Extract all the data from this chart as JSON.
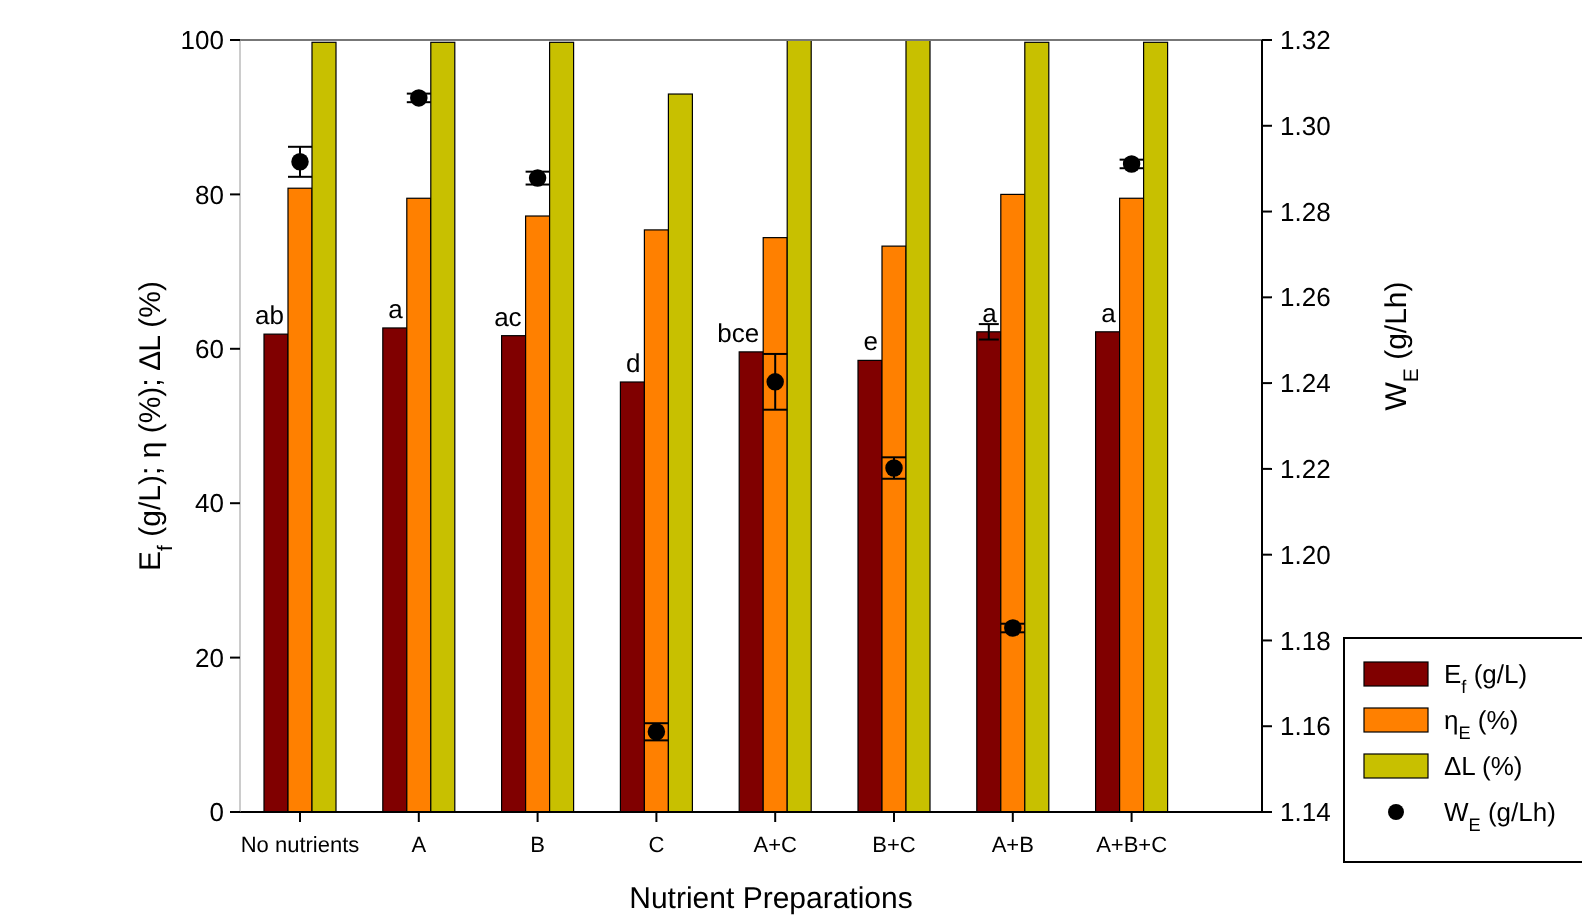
{
  "chart_data": {
    "type": "bar",
    "xlabel": "Nutrient Preparations",
    "ylabel": "E$_{f}$ (g/L); η (%); ∆L (%)",
    "y2label": "W$_{E}$ (g/Lh)",
    "categories": [
      "No nutrients",
      "A",
      "B",
      "C",
      "A+C",
      "B+C",
      "A+B",
      "A+B+C"
    ],
    "series": [
      {
        "name": "E$_{f}$ (g/L)",
        "color": "#800000",
        "values": [
          61.9,
          62.7,
          61.7,
          55.7,
          59.6,
          58.5,
          62.2,
          62.2
        ],
        "errors": [
          null,
          null,
          null,
          null,
          null,
          null,
          1,
          null
        ],
        "value_labels": [
          "ab",
          "a",
          "ac",
          "d",
          "bce",
          "e",
          "a",
          "a"
        ]
      },
      {
        "name": "η$_{E}$ (%)",
        "color": "#ff8000",
        "values": [
          80.8,
          79.5,
          77.2,
          75.4,
          74.4,
          73.3,
          80,
          79.5
        ]
      },
      {
        "name": "ΔL (%)",
        "color": "#c8c000",
        "values": [
          99.7,
          99.7,
          99.7,
          93,
          100,
          100,
          99.7,
          99.7
        ]
      },
      {
        "name": "W$_{E}$ (g/Lh)",
        "type": "scatter",
        "axis": "y2",
        "color": "#000000",
        "marker": "circle",
        "values": [
          1.2916,
          1.3065,
          1.2878,
          1.1587,
          1.2403,
          1.2202,
          1.1829,
          1.2911
        ],
        "errors": [
          0.0035,
          0.001,
          0.0015,
          0.002,
          0.0065,
          0.0025,
          0.001,
          0.001
        ]
      }
    ],
    "ylim": [
      0,
      100
    ],
    "yticks": [
      0,
      20,
      40,
      60,
      80,
      100
    ],
    "y2lim": [
      1.14,
      1.32
    ],
    "y2ticks": [
      {
        "value": 1.14,
        "label": "1.14"
      },
      {
        "value": 1.16,
        "label": "1.16"
      },
      {
        "value": 1.18,
        "label": "1.18"
      },
      {
        "value": 1.2,
        "label": "1.20"
      },
      {
        "value": 1.22,
        "label": "1.22"
      },
      {
        "value": 1.24,
        "label": "1.24"
      },
      {
        "value": 1.26,
        "label": "1.26"
      },
      {
        "value": 1.28,
        "label": "1.28"
      },
      {
        "value": 1.3,
        "label": "1.30"
      },
      {
        "value": 1.32,
        "label": "1.32"
      }
    ],
    "grid": false,
    "legend": "bottom right"
  }
}
